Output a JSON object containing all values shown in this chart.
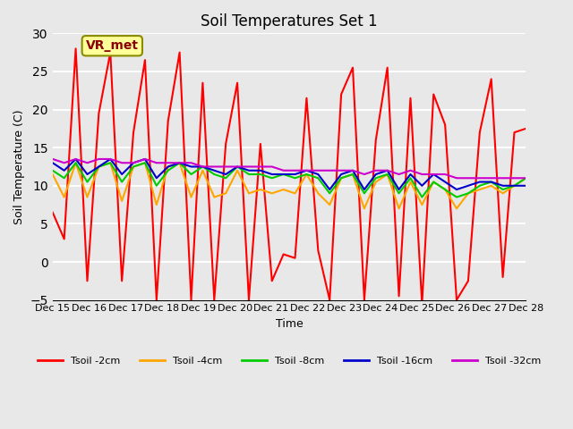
{
  "title": "Soil Temperatures Set 1",
  "xlabel": "Time",
  "ylabel": "Soil Temperature (C)",
  "ylim": [
    -5,
    30
  ],
  "xlim": [
    0,
    13
  ],
  "xtick_labels": [
    "Dec 15",
    "Dec 16",
    "Dec 17",
    "Dec 18",
    "Dec 19",
    "Dec 20",
    "Dec 21",
    "Dec 22",
    "Dec 23",
    "Dec 24",
    "Dec 25",
    "Dec 26",
    "Dec 27",
    "Dec 28"
  ],
  "ytick_values": [
    -5,
    0,
    5,
    10,
    15,
    20,
    25,
    30
  ],
  "background_color": "#e8e8e8",
  "plot_bg_color": "#e8e8e8",
  "grid_color": "#ffffff",
  "annotation_text": "VR_met",
  "annotation_color": "#8B0000",
  "annotation_bg": "#ffff99",
  "series": {
    "Tsoil -2cm": {
      "color": "#ff0000",
      "lw": 1.5
    },
    "Tsoil -4cm": {
      "color": "#ffa500",
      "lw": 1.5
    },
    "Tsoil -8cm": {
      "color": "#00cc00",
      "lw": 1.5
    },
    "Tsoil -16cm": {
      "color": "#0000cc",
      "lw": 1.5
    },
    "Tsoil -32cm": {
      "color": "#cc00cc",
      "lw": 1.5
    }
  },
  "tsoil_2cm": [
    6.5,
    3.0,
    28.0,
    -2.5,
    19.5,
    27.5,
    -2.5,
    17.0,
    26.5,
    -5.0,
    18.5,
    27.5,
    -5.0,
    23.5,
    -5.0,
    15.5,
    23.5,
    -5.0,
    15.5,
    -2.5,
    1.0,
    0.5,
    21.5,
    1.5,
    -5.0,
    22.0,
    25.5,
    -5.0,
    16.0,
    25.5,
    -4.5,
    21.5,
    -5.5,
    22.0,
    18.0,
    -5.0,
    -2.5,
    17.0,
    24.0,
    -2.0,
    17.0,
    17.5
  ],
  "tsoil_4cm": [
    11.5,
    8.5,
    13.0,
    8.5,
    12.5,
    13.0,
    8.0,
    12.5,
    13.0,
    7.5,
    12.5,
    13.0,
    8.5,
    12.0,
    8.5,
    9.0,
    12.0,
    9.0,
    9.5,
    9.0,
    9.5,
    9.0,
    11.5,
    9.0,
    7.5,
    11.0,
    11.5,
    7.0,
    10.5,
    11.5,
    7.0,
    10.5,
    7.5,
    10.5,
    9.5,
    7.0,
    9.0,
    9.5,
    10.0,
    9.0,
    10.0,
    11.0
  ],
  "tsoil_8cm": [
    12.0,
    11.0,
    13.0,
    10.5,
    12.5,
    13.0,
    10.5,
    12.5,
    13.0,
    10.0,
    12.0,
    13.0,
    11.5,
    12.5,
    11.5,
    11.0,
    12.5,
    11.5,
    11.5,
    11.0,
    11.5,
    11.0,
    11.5,
    11.0,
    9.0,
    11.0,
    11.5,
    9.0,
    11.0,
    11.5,
    9.0,
    11.0,
    8.5,
    10.5,
    9.5,
    8.5,
    9.0,
    10.0,
    10.5,
    9.5,
    10.0,
    11.0
  ],
  "tsoil_16cm": [
    13.0,
    12.0,
    13.5,
    11.5,
    12.5,
    13.5,
    11.5,
    13.0,
    13.5,
    11.0,
    12.5,
    13.0,
    12.5,
    12.5,
    12.0,
    11.5,
    12.5,
    12.0,
    12.0,
    11.5,
    11.5,
    11.5,
    12.0,
    11.5,
    9.5,
    11.5,
    12.0,
    9.5,
    11.5,
    12.0,
    9.5,
    11.5,
    10.0,
    11.5,
    10.5,
    9.5,
    10.0,
    10.5,
    10.5,
    10.0,
    10.0,
    10.0
  ],
  "tsoil_32cm": [
    13.5,
    13.0,
    13.5,
    13.0,
    13.5,
    13.5,
    13.0,
    13.0,
    13.5,
    13.0,
    13.0,
    13.0,
    13.0,
    12.5,
    12.5,
    12.5,
    12.5,
    12.5,
    12.5,
    12.5,
    12.0,
    12.0,
    12.0,
    12.0,
    12.0,
    12.0,
    12.0,
    11.5,
    12.0,
    12.0,
    11.5,
    12.0,
    11.5,
    11.5,
    11.5,
    11.0,
    11.0,
    11.0,
    11.0,
    11.0,
    11.0,
    11.0
  ]
}
